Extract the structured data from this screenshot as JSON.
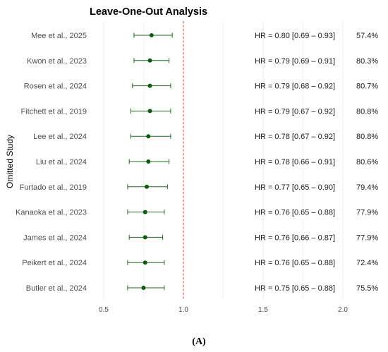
{
  "chart_data": {
    "type": "forest",
    "title": "Leave-One-Out Analysis",
    "ylabel": "Omitted Study",
    "xlim": [
      0.38,
      2.3
    ],
    "x_ticks": [
      0.5,
      1.0,
      1.5,
      2.0
    ],
    "x_tick_labels": [
      "0.5",
      "1.0",
      "1.5",
      "2.0"
    ],
    "reference_line": 1.0,
    "grid": true,
    "colors": {
      "point": "#0e5a0e",
      "ci": "#1e6b1e",
      "reference": "#e23a3a"
    },
    "rows": [
      {
        "study": "Mee et al., 2025",
        "hr": 0.8,
        "lo": 0.69,
        "hi": 0.93,
        "hr_text": "HR = 0.80 [0.69 – 0.93]",
        "i2": "57.4%"
      },
      {
        "study": "Kwon et al., 2023",
        "hr": 0.79,
        "lo": 0.69,
        "hi": 0.91,
        "hr_text": "HR = 0.79 [0.69 – 0.91]",
        "i2": "80.3%"
      },
      {
        "study": "Rosen et al., 2024",
        "hr": 0.79,
        "lo": 0.68,
        "hi": 0.92,
        "hr_text": "HR = 0.79 [0.68 – 0.92]",
        "i2": "80.7%"
      },
      {
        "study": "Fitchett et al., 2019",
        "hr": 0.79,
        "lo": 0.67,
        "hi": 0.92,
        "hr_text": "HR = 0.79 [0.67 – 0.92]",
        "i2": "80.8%"
      },
      {
        "study": "Lee et al., 2024",
        "hr": 0.78,
        "lo": 0.67,
        "hi": 0.92,
        "hr_text": "HR = 0.78 [0.67 – 0.92]",
        "i2": "80.8%"
      },
      {
        "study": "Liu et al., 2024",
        "hr": 0.78,
        "lo": 0.66,
        "hi": 0.91,
        "hr_text": "HR = 0.78 [0.66 – 0.91]",
        "i2": "80.6%"
      },
      {
        "study": "Furtado et al., 2019",
        "hr": 0.77,
        "lo": 0.65,
        "hi": 0.9,
        "hr_text": "HR = 0.77 [0.65 – 0.90]",
        "i2": "79.4%"
      },
      {
        "study": "Kanaoka et al., 2023",
        "hr": 0.76,
        "lo": 0.65,
        "hi": 0.88,
        "hr_text": "HR = 0.76 [0.65 – 0.88]",
        "i2": "77.9%"
      },
      {
        "study": "James et al., 2024",
        "hr": 0.76,
        "lo": 0.66,
        "hi": 0.87,
        "hr_text": "HR = 0.76 [0.66 – 0.87]",
        "i2": "77.9%"
      },
      {
        "study": "Peikert et al., 2024",
        "hr": 0.76,
        "lo": 0.65,
        "hi": 0.88,
        "hr_text": "HR = 0.76 [0.65 – 0.88]",
        "i2": "72.4%"
      },
      {
        "study": "Butler et al., 2024",
        "hr": 0.75,
        "lo": 0.65,
        "hi": 0.88,
        "hr_text": "HR = 0.75 [0.65 – 0.88]",
        "i2": "75.5%"
      }
    ]
  },
  "panel_label": "(A)"
}
